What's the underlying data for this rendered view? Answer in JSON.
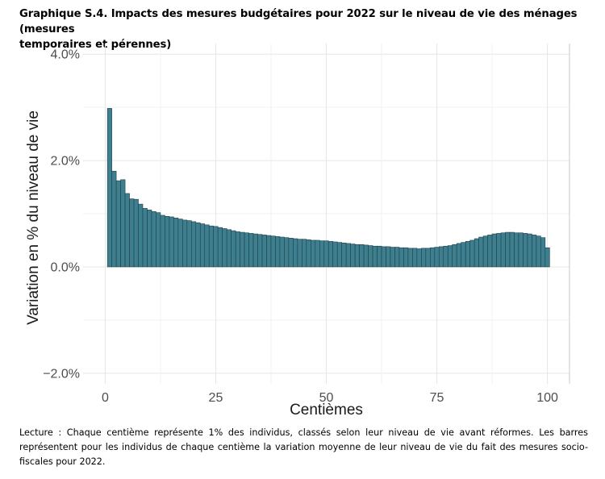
{
  "figure": {
    "title_lines": [
      "Graphique S.4. Impacts des mesures budgétaires pour 2022 sur le niveau de vie des ménages (mesures",
      "temporaires et pérennes)"
    ],
    "caption_lines": [
      "Lecture : Chaque centième représente 1% des individus, classés selon leur niveau de vie avant réformes. Les barres",
      "représentent pour les individus de chaque centième la variation moyenne de leur niveau de vie du fait des mesures socio-",
      "fiscales pour 2022."
    ]
  },
  "chart_data": {
    "type": "bar",
    "title": "",
    "xlabel": "Centièmes",
    "ylabel": "Variation en % du niveau de vie",
    "xlim": [
      -5,
      105
    ],
    "ylim": [
      -2.2,
      4.2
    ],
    "x_ticks": [
      0,
      25,
      50,
      75,
      100
    ],
    "x_tick_labels": [
      "0",
      "25",
      "50",
      "75",
      "100"
    ],
    "y_ticks": [
      -2.0,
      0.0,
      2.0,
      4.0
    ],
    "y_tick_labels": [
      "−2.0%",
      "0.0%",
      "2.0%",
      "4.0%"
    ],
    "grid": true,
    "bar_color": "#3e7f8f",
    "bar_edge_color": "#1f3f49",
    "x": [
      1,
      2,
      3,
      4,
      5,
      6,
      7,
      8,
      9,
      10,
      11,
      12,
      13,
      14,
      15,
      16,
      17,
      18,
      19,
      20,
      21,
      22,
      23,
      24,
      25,
      26,
      27,
      28,
      29,
      30,
      31,
      32,
      33,
      34,
      35,
      36,
      37,
      38,
      39,
      40,
      41,
      42,
      43,
      44,
      45,
      46,
      47,
      48,
      49,
      50,
      51,
      52,
      53,
      54,
      55,
      56,
      57,
      58,
      59,
      60,
      61,
      62,
      63,
      64,
      65,
      66,
      67,
      68,
      69,
      70,
      71,
      72,
      73,
      74,
      75,
      76,
      77,
      78,
      79,
      80,
      81,
      82,
      83,
      84,
      85,
      86,
      87,
      88,
      89,
      90,
      91,
      92,
      93,
      94,
      95,
      96,
      97,
      98,
      99,
      100
    ],
    "values": [
      2.98,
      1.8,
      1.62,
      1.64,
      1.38,
      1.28,
      1.27,
      1.18,
      1.1,
      1.07,
      1.04,
      1.02,
      0.97,
      0.95,
      0.94,
      0.92,
      0.9,
      0.88,
      0.87,
      0.85,
      0.83,
      0.81,
      0.79,
      0.77,
      0.76,
      0.74,
      0.72,
      0.7,
      0.68,
      0.66,
      0.65,
      0.64,
      0.63,
      0.62,
      0.61,
      0.6,
      0.59,
      0.58,
      0.57,
      0.56,
      0.55,
      0.54,
      0.53,
      0.52,
      0.52,
      0.51,
      0.5,
      0.5,
      0.49,
      0.49,
      0.48,
      0.47,
      0.46,
      0.45,
      0.44,
      0.43,
      0.42,
      0.42,
      0.41,
      0.4,
      0.39,
      0.39,
      0.38,
      0.38,
      0.37,
      0.37,
      0.36,
      0.36,
      0.35,
      0.35,
      0.34,
      0.35,
      0.35,
      0.36,
      0.37,
      0.38,
      0.39,
      0.4,
      0.42,
      0.44,
      0.46,
      0.48,
      0.5,
      0.53,
      0.56,
      0.58,
      0.6,
      0.62,
      0.63,
      0.64,
      0.65,
      0.65,
      0.64,
      0.64,
      0.63,
      0.62,
      0.6,
      0.58,
      0.55,
      0.36
    ]
  }
}
